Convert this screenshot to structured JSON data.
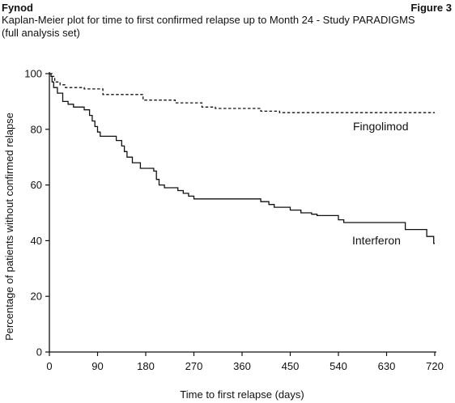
{
  "header": {
    "left": "Fynod",
    "right": "Figure 3",
    "title_line1": "Kaplan-Meier plot for time to first confirmed relapse up to Month 24 - Study PARADIGMS",
    "title_line2": "(full analysis set)"
  },
  "chart_data": {
    "type": "line",
    "title": "Kaplan-Meier plot for time to first confirmed relapse up to Month 24 - Study PARADIGMS (full analysis set)",
    "xlabel": "Time to first relapse (days)",
    "ylabel": "Percentage of patients without confirmed relapse",
    "xlim": [
      0,
      720
    ],
    "ylim": [
      0,
      100
    ],
    "xticks": [
      0,
      90,
      180,
      270,
      360,
      450,
      540,
      630,
      720
    ],
    "yticks": [
      0,
      20,
      40,
      60,
      80,
      100
    ],
    "grid": false,
    "step": true,
    "series": [
      {
        "name": "Fingolimod",
        "style": "dashed",
        "color": "#111111",
        "points": [
          [
            0,
            100
          ],
          [
            5,
            99
          ],
          [
            10,
            97
          ],
          [
            20,
            96
          ],
          [
            30,
            95
          ],
          [
            60,
            95
          ],
          [
            65,
            94.5
          ],
          [
            90,
            94.5
          ],
          [
            100,
            92.5
          ],
          [
            170,
            92.5
          ],
          [
            175,
            90.5
          ],
          [
            230,
            90.5
          ],
          [
            235,
            89.5
          ],
          [
            280,
            89.5
          ],
          [
            285,
            88
          ],
          [
            300,
            88
          ],
          [
            310,
            87.5
          ],
          [
            390,
            87.5
          ],
          [
            395,
            86.5
          ],
          [
            430,
            86
          ],
          [
            720,
            86
          ]
        ]
      },
      {
        "name": "Interferon",
        "style": "solid",
        "color": "#111111",
        "points": [
          [
            0,
            100
          ],
          [
            3,
            99
          ],
          [
            5,
            97
          ],
          [
            8,
            95
          ],
          [
            15,
            93
          ],
          [
            25,
            90
          ],
          [
            35,
            89
          ],
          [
            45,
            88
          ],
          [
            65,
            87
          ],
          [
            75,
            85
          ],
          [
            80,
            83
          ],
          [
            85,
            81
          ],
          [
            90,
            79
          ],
          [
            95,
            77.5
          ],
          [
            120,
            77.5
          ],
          [
            125,
            76
          ],
          [
            135,
            74
          ],
          [
            140,
            72
          ],
          [
            145,
            70
          ],
          [
            155,
            68
          ],
          [
            170,
            66
          ],
          [
            195,
            65
          ],
          [
            200,
            62
          ],
          [
            205,
            60
          ],
          [
            215,
            59
          ],
          [
            240,
            58
          ],
          [
            250,
            57
          ],
          [
            260,
            56
          ],
          [
            270,
            55
          ],
          [
            390,
            55
          ],
          [
            395,
            54
          ],
          [
            410,
            53
          ],
          [
            420,
            52
          ],
          [
            440,
            52
          ],
          [
            450,
            51
          ],
          [
            470,
            50
          ],
          [
            490,
            49.5
          ],
          [
            500,
            49
          ],
          [
            530,
            49
          ],
          [
            540,
            47.5
          ],
          [
            550,
            46.5
          ],
          [
            660,
            46.5
          ],
          [
            665,
            44
          ],
          [
            700,
            44
          ],
          [
            705,
            41.5
          ],
          [
            715,
            41.5
          ],
          [
            718,
            39
          ],
          [
            720,
            39
          ]
        ]
      }
    ]
  }
}
